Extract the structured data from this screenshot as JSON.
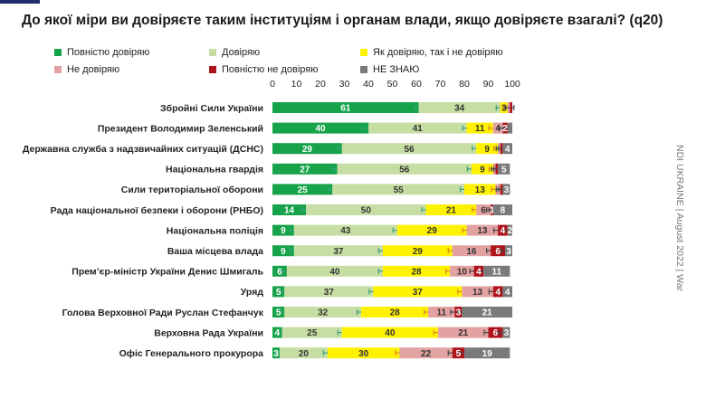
{
  "title": "До якої міри ви довіряєте таким інституціям і органам влади, якщо довіряєте взагалі? (q20)",
  "side_note": "NDI UKRAINE | August 2022 | War",
  "colors": {
    "full_trust": "#16a34a",
    "trust": "#c6dda3",
    "neutral": "#fff200",
    "distrust": "#e2a2a2",
    "full_distrust": "#b0141b",
    "dont_know": "#7a7a7a",
    "error_bar": "#3aa17a"
  },
  "chart_data": {
    "type": "bar",
    "orientation": "horizontal",
    "stacked": true,
    "title": "До якої міри ви довіряєте таким інституціям і органам влади, якщо довіряєте взагалі? (q20)",
    "xlim": [
      0,
      100
    ],
    "x_ticks": [
      0,
      10,
      20,
      30,
      40,
      50,
      60,
      70,
      80,
      90,
      100
    ],
    "legend_position": "top",
    "categories": [
      "Збройні Сили України",
      "Президент Володимир Зеленський",
      "Державна служба з надзвичайних ситуацій (ДСНС)",
      "Національна гвардія",
      "Сили територіальної оборони",
      "Рада національної безпеки і оборони (РНБО)",
      "Національна поліція",
      "Ваша місцева влада",
      "Прем’єр-міністр України Денис Шмигаль",
      "Уряд",
      "Голова Верховної Ради Руслан Стефанчук",
      "Верховна Рада України",
      "Офіс Генерального прокурора"
    ],
    "series": [
      {
        "name": "Повністю довіряю",
        "color": "#16a34a",
        "values": [
          61,
          40,
          29,
          27,
          25,
          14,
          9,
          9,
          6,
          5,
          5,
          4,
          3
        ]
      },
      {
        "name": "Довіряю",
        "color": "#c6dda3",
        "values": [
          34,
          41,
          56,
          56,
          55,
          50,
          43,
          37,
          40,
          37,
          32,
          25,
          20
        ]
      },
      {
        "name": "Як довіряю, так і не довіряю",
        "color": "#fff200",
        "values": [
          3,
          11,
          9,
          9,
          13,
          21,
          29,
          29,
          28,
          37,
          28,
          40,
          30
        ]
      },
      {
        "name": "Не довіряю",
        "color": "#e2a2a2",
        "values": [
          1,
          4,
          1,
          1,
          2,
          6,
          13,
          16,
          10,
          13,
          11,
          21,
          22
        ]
      },
      {
        "name": "Повністю не довіряю",
        "color": "#b0141b",
        "values": [
          1,
          2,
          1,
          1,
          1,
          1,
          4,
          6,
          4,
          4,
          3,
          6,
          5
        ]
      },
      {
        "name": "НЕ ЗНАЮ",
        "color": "#7a7a7a",
        "values": [
          0,
          2,
          4,
          5,
          3,
          8,
          2,
          3,
          11,
          4,
          21,
          3,
          19
        ]
      }
    ],
    "labels": [
      [
        "61",
        "34",
        "3",
        "",
        "",
        ""
      ],
      [
        "40",
        "41",
        "11",
        "4",
        "2",
        ""
      ],
      [
        "29",
        "56",
        "9",
        "",
        "",
        "4"
      ],
      [
        "27",
        "56",
        "9",
        "",
        "",
        "5"
      ],
      [
        "25",
        "55",
        "13",
        "",
        "",
        "3"
      ],
      [
        "14",
        "50",
        "21",
        "6",
        "1",
        "8"
      ],
      [
        "9",
        "43",
        "29",
        "13",
        "4",
        "2"
      ],
      [
        "9",
        "37",
        "29",
        "16",
        "6",
        "3"
      ],
      [
        "6",
        "40",
        "28",
        "10",
        "4",
        "11"
      ],
      [
        "5",
        "37",
        "37",
        "13",
        "4",
        "4"
      ],
      [
        "5",
        "32",
        "28",
        "11",
        "3",
        "21"
      ],
      [
        "4",
        "25",
        "40",
        "21",
        "6",
        "3"
      ],
      [
        "3",
        "20",
        "30",
        "22",
        "5",
        "19"
      ]
    ]
  }
}
